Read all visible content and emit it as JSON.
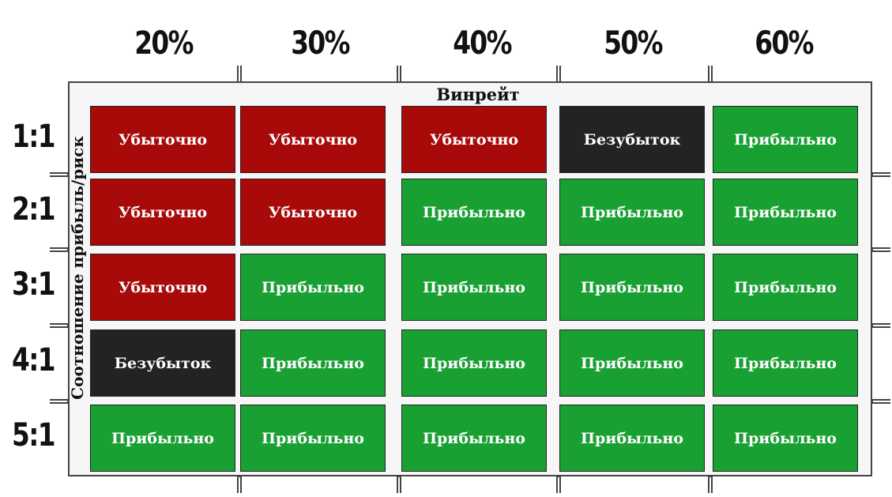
{
  "chart_data": {
    "type": "table",
    "xlabel": "Винрейт",
    "ylabel": "Соотношение прибыль/риск",
    "columns": [
      "20%",
      "30%",
      "40%",
      "50%",
      "60%"
    ],
    "rows": [
      "1:1",
      "2:1",
      "3:1",
      "4:1",
      "5:1"
    ],
    "cells": [
      [
        "Убыточно",
        "Убыточно",
        "Убыточно",
        "Безубыток",
        "Прибыльно"
      ],
      [
        "Убыточно",
        "Убыточно",
        "Прибыльно",
        "Прибыльно",
        "Прибыльно"
      ],
      [
        "Убыточно",
        "Прибыльно",
        "Прибыльно",
        "Прибыльно",
        "Прибыльно"
      ],
      [
        "Безубыток",
        "Прибыльно",
        "Прибыльно",
        "Прибыльно",
        "Прибыльно"
      ],
      [
        "Прибыльно",
        "Прибыльно",
        "Прибыльно",
        "Прибыльно",
        "Прибыльно"
      ]
    ],
    "colors": {
      "Убыточно": "#a80a0a",
      "Безубыток": "#232323",
      "Прибыльно": "#19a032"
    }
  }
}
